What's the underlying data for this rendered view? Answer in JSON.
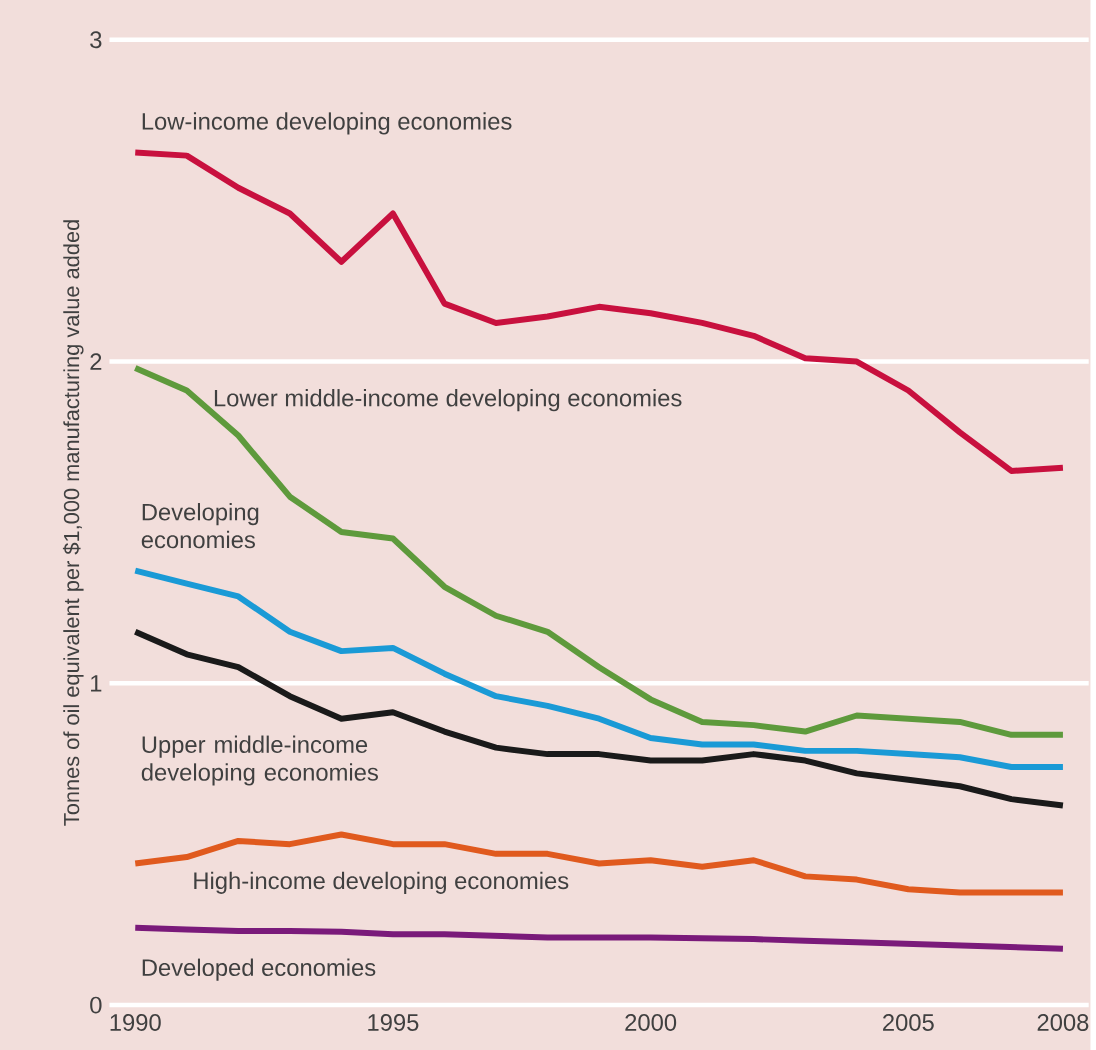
{
  "chart_data": {
    "type": "line",
    "ylabel": "Tonnes of oil equivalent per $1,000 manufacturing value added",
    "x": [
      1990,
      1991,
      1992,
      1993,
      1994,
      1995,
      1996,
      1997,
      1998,
      1999,
      2000,
      2001,
      2002,
      2003,
      2004,
      2005,
      2006,
      2007,
      2008
    ],
    "xlim": [
      1989.5,
      2008.5
    ],
    "xticks": [
      1990,
      1995,
      2000,
      2005,
      2008
    ],
    "ylim": [
      0,
      3
    ],
    "yticks": [
      0,
      1,
      2,
      3
    ],
    "grid": "y",
    "marker": "none",
    "line_style": "solid",
    "series": [
      {
        "name": "Low-income developing economies",
        "color": "#c8103e",
        "values": [
          2.65,
          2.64,
          2.54,
          2.46,
          2.31,
          2.46,
          2.18,
          2.12,
          2.14,
          2.17,
          2.15,
          2.12,
          2.08,
          2.01,
          2.0,
          1.91,
          1.78,
          1.66,
          1.67
        ]
      },
      {
        "name": "Lower middle-income developing economies",
        "color": "#5e9a3c",
        "values": [
          1.98,
          1.91,
          1.77,
          1.58,
          1.47,
          1.45,
          1.3,
          1.21,
          1.16,
          1.05,
          0.95,
          0.88,
          0.87,
          0.85,
          0.9,
          0.89,
          0.88,
          0.84,
          0.84
        ]
      },
      {
        "name": "Developing economies",
        "color": "#1a9ad6",
        "values": [
          1.35,
          1.31,
          1.27,
          1.16,
          1.1,
          1.11,
          1.03,
          0.96,
          0.93,
          0.89,
          0.83,
          0.81,
          0.81,
          0.79,
          0.79,
          0.78,
          0.77,
          0.74,
          0.74
        ]
      },
      {
        "name": "Upper middle-income developing economies",
        "color": "#1a1a1a",
        "values": [
          1.16,
          1.09,
          1.05,
          0.96,
          0.89,
          0.91,
          0.85,
          0.8,
          0.78,
          0.78,
          0.76,
          0.76,
          0.78,
          0.76,
          0.72,
          0.7,
          0.68,
          0.64,
          0.62
        ]
      },
      {
        "name": "High-income developing economies",
        "color": "#e05a1e",
        "values": [
          0.44,
          0.46,
          0.51,
          0.5,
          0.53,
          0.5,
          0.5,
          0.47,
          0.47,
          0.44,
          0.45,
          0.43,
          0.45,
          0.4,
          0.39,
          0.36,
          0.35,
          0.35,
          0.35
        ]
      },
      {
        "name": "Developed economies",
        "color": "#7a1a7a",
        "values": [
          0.24,
          0.235,
          0.23,
          0.23,
          0.228,
          0.22,
          0.22,
          0.215,
          0.21,
          0.21,
          0.21,
          0.208,
          0.205,
          0.2,
          0.195,
          0.19,
          0.185,
          0.18,
          0.175
        ]
      }
    ]
  }
}
